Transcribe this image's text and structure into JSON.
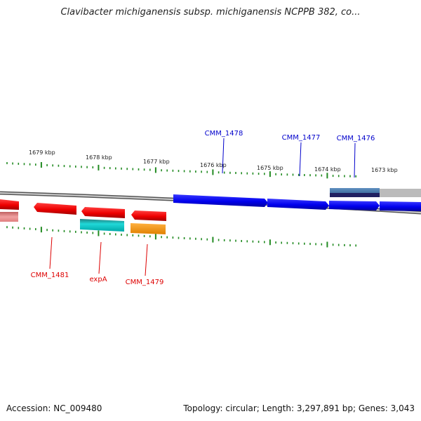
{
  "title": "Clavibacter michiganensis subsp. michiganensis NCPPB 382, co...",
  "accession": "Accession: NC_009480",
  "topology": "Topology: circular; Length: 3,297,891 bp; Genes: 3,043",
  "colors": {
    "forward_gene": "#0000ee",
    "reverse_gene": "#ee0000",
    "backbone": "#888888",
    "tick": "#228b22",
    "cds_highlight": "#00c8c8",
    "orange_feature": "#ff9900",
    "gray_feature": "#bbbbbb",
    "navy_feature": "#202060"
  },
  "kbp_labels": [
    "1679 kbp",
    "1678 kbp",
    "1677 kbp",
    "1676 kbp",
    "1675 kbp",
    "1674 kbp",
    "1673 kbp"
  ],
  "gene_labels": {
    "top": [
      "CMM_1478",
      "CMM_1477",
      "CMM_1476"
    ],
    "bottom": [
      "CMM_1481",
      "expA",
      "CMM_1479"
    ]
  }
}
